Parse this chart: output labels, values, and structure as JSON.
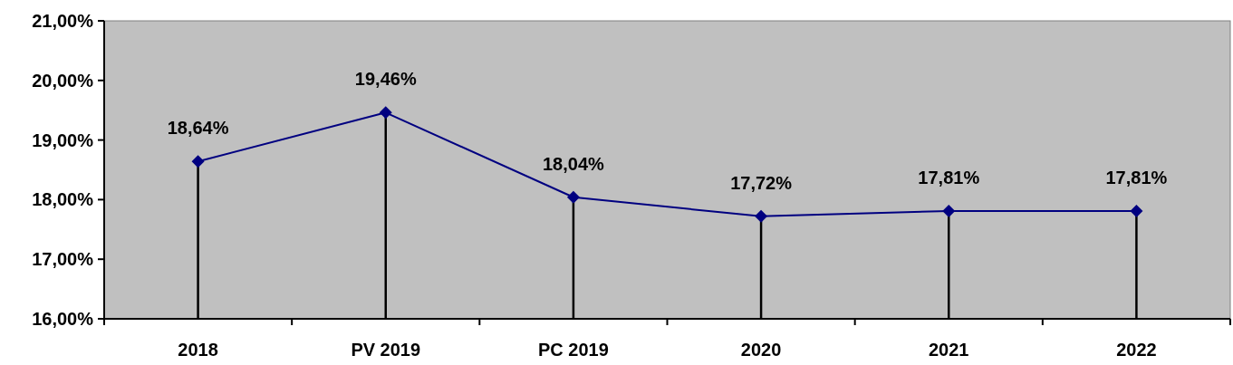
{
  "chart_data": {
    "type": "line",
    "categories": [
      "2018",
      "PV 2019",
      "PC 2019",
      "2020",
      "2021",
      "2022"
    ],
    "series": [
      {
        "color": "#000080",
        "values": [
          18.64,
          19.46,
          18.04,
          17.72,
          17.81,
          17.81
        ],
        "value_labels": [
          "18,64%",
          "19,46%",
          "18,04%",
          "17,72%",
          "17,81%",
          "17,81%"
        ]
      }
    ],
    "ylim": [
      16,
      21
    ],
    "yticks": [
      {
        "value": 16,
        "label": "16,00%"
      },
      {
        "value": 17,
        "label": "17,00%"
      },
      {
        "value": 18,
        "label": "18,00%"
      },
      {
        "value": 19,
        "label": "19,00%"
      },
      {
        "value": 20,
        "label": "20,00%"
      },
      {
        "value": 21,
        "label": "21,00%"
      }
    ],
    "marker": "diamond",
    "grid": false
  }
}
